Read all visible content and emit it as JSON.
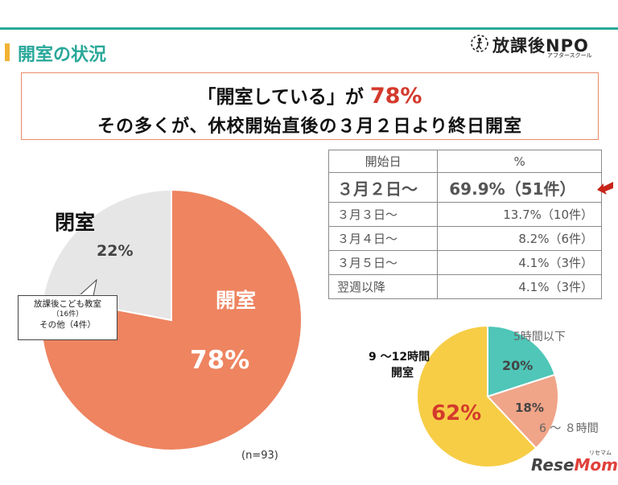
{
  "header": {
    "title": "開室の状況",
    "logo_text": "放課後NPO",
    "logo_sub": "アフタースクール"
  },
  "headline": {
    "line1_a": "「開室している」が",
    "line1_pct": "78%",
    "line2": "その多くが、休校開始直後の３月２日より終日開室"
  },
  "colors": {
    "teal": "#2aa89a",
    "orange": "#ee8460",
    "gray": "#e6e6e6",
    "yellow": "#f7cd46",
    "salmon": "#f0a488",
    "mint": "#4fc6b8",
    "red": "#d33a2c"
  },
  "chart_data": [
    {
      "type": "pie",
      "title": "",
      "slices": [
        {
          "name": "開室",
          "value": 78,
          "label": "78%"
        },
        {
          "name": "閉室",
          "value": 22,
          "label": "22%"
        }
      ],
      "note": "(n=93)",
      "callout": {
        "line1": "放課後こども教室",
        "line2": "（16件）",
        "line3": "その他（4件）"
      }
    },
    {
      "type": "table",
      "columns": [
        "開始日",
        "%"
      ],
      "rows": [
        [
          "３月２日〜",
          "69.9%（51件）"
        ],
        [
          "３月３日〜",
          "13.7%（10件）"
        ],
        [
          "３月４日〜",
          "8.2%（6件）"
        ],
        [
          "３月５日〜",
          "4.1%（3件）"
        ],
        [
          "翌週以降",
          "4.1%（3件）"
        ]
      ]
    },
    {
      "type": "pie",
      "title": "",
      "slices": [
        {
          "name": "5時間以下",
          "value": 20,
          "label": "20%"
        },
        {
          "name": "6〜８時間",
          "value": 18,
          "label": "18%"
        },
        {
          "name": "9〜12時間 開室",
          "value": 62,
          "label": "62%"
        }
      ],
      "category_labels": {
        "a": "5時間以下",
        "b": "6 〜 ８時間",
        "c1": "9 〜12時間",
        "c2": "開室"
      }
    }
  ],
  "watermark": {
    "text_a": "Rese",
    "text_b": "Mom",
    "ruby": "リセマム"
  }
}
